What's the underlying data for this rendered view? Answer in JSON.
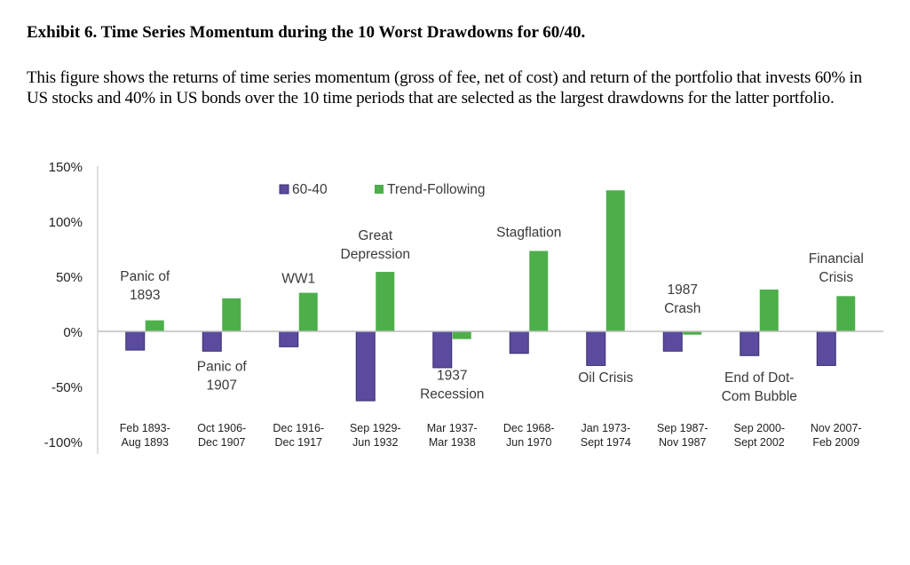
{
  "exhibit": {
    "title": "Exhibit 6. Time Series Momentum during the 10 Worst Drawdowns for 60/40.",
    "caption": "This figure shows the returns of time series momentum (gross of fee, net of cost)  and return of the portfolio that invests 60% in US stocks and 40% in US bonds over the 10 time periods that are selected as the largest drawdowns for the latter portfolio."
  },
  "chart_data": {
    "type": "bar",
    "ylim": [
      -100,
      150
    ],
    "yticks": [
      "150%",
      "100%",
      "50%",
      "0%",
      "-50%",
      "-100%"
    ],
    "yticks_values": [
      150,
      100,
      50,
      0,
      -50,
      -100
    ],
    "grid": false,
    "legend_position": "top-center",
    "categories": [
      [
        "Feb 1893-",
        "Aug 1893"
      ],
      [
        "Oct 1906-",
        "Dec 1907"
      ],
      [
        "Dec 1916-",
        "Dec 1917"
      ],
      [
        "Sep 1929-",
        "Jun 1932"
      ],
      [
        "Mar 1937-",
        "Mar 1938"
      ],
      [
        "Dec 1968-",
        "Jun 1970"
      ],
      [
        "Jan 1973-",
        "Sept 1974"
      ],
      [
        "Sep 1987-",
        "Nov 1987"
      ],
      [
        "Sep 2000-",
        "Sept 2002"
      ],
      [
        "Nov 2007-",
        "Feb 2009"
      ]
    ],
    "series": [
      {
        "name": "60-40",
        "color": "#5b4b9e",
        "values": [
          -17,
          -18,
          -14,
          -63,
          -33,
          -20,
          -31,
          -18,
          -22,
          -31
        ]
      },
      {
        "name": "Trend-Following",
        "color": "#4daf4a",
        "values": [
          10,
          30,
          35,
          54,
          -7,
          73,
          128,
          -3,
          38,
          32
        ]
      }
    ],
    "annotations": [
      {
        "lines": [
          "Panic of",
          "1893"
        ],
        "category_index": 0,
        "y": 46
      },
      {
        "lines": [
          "Panic of",
          "1907"
        ],
        "category_index": 1,
        "y": -36
      },
      {
        "lines": [
          "WW1"
        ],
        "category_index": 2,
        "y": 44
      },
      {
        "lines": [
          "Great",
          "Depression"
        ],
        "category_index": 3,
        "y": 83
      },
      {
        "lines": [
          "1937",
          "Recession"
        ],
        "category_index": 4,
        "y": -44
      },
      {
        "lines": [
          "Stagflation"
        ],
        "category_index": 5,
        "y": 86
      },
      {
        "lines": [
          "Oil Crisis"
        ],
        "category_index": 6,
        "y": -46
      },
      {
        "lines": [
          "1987",
          "Crash"
        ],
        "category_index": 7,
        "y": 34
      },
      {
        "lines": [
          "End of Dot-",
          "Com Bubble"
        ],
        "category_index": 8,
        "y": -46
      },
      {
        "lines": [
          "Financial",
          "Crisis"
        ],
        "category_index": 9,
        "y": 62
      }
    ]
  }
}
